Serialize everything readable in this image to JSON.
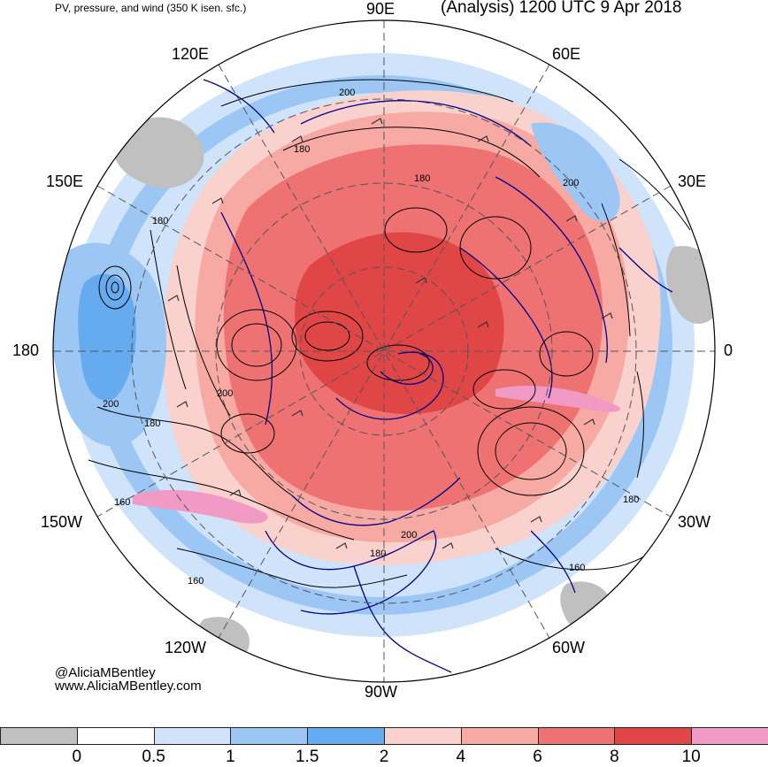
{
  "header": {
    "left_title": "PV, pressure, and wind (350 K isen. sfc.)",
    "right_title": "(Analysis) 1200 UTC 9 Apr 2018"
  },
  "map": {
    "projection": "north polar stereographic",
    "longitude_labels": [
      "90E",
      "60E",
      "30E",
      "0",
      "30W",
      "60W",
      "90W",
      "120W",
      "150W",
      "180",
      "150E",
      "120E"
    ],
    "contour_labels": [
      "200",
      "180",
      "180",
      "200",
      "180",
      "200",
      "200",
      "180",
      "160",
      "200",
      "180",
      "180",
      "160",
      "160"
    ],
    "colors": {
      "ocean_bg": "#ffffff",
      "coastline": "#00008b",
      "contour": "#000000",
      "graticule": "#555555"
    }
  },
  "credits": {
    "handle": "@AliciaMBentley",
    "website": "www.AliciaMBentley.com"
  },
  "colorbar": {
    "ticks": [
      "0",
      "0.5",
      "1",
      "1.5",
      "2",
      "4",
      "6",
      "8",
      "10"
    ],
    "bins": [
      {
        "color": "#c0c0c0"
      },
      {
        "color": "#ffffff"
      },
      {
        "color": "#cfe3fb"
      },
      {
        "color": "#9cc7f5"
      },
      {
        "color": "#66aaef"
      },
      {
        "color": "#fad2cd"
      },
      {
        "color": "#f7aaa4"
      },
      {
        "color": "#ef7272"
      },
      {
        "color": "#e04646"
      },
      {
        "color": "#f29ac6"
      }
    ]
  }
}
